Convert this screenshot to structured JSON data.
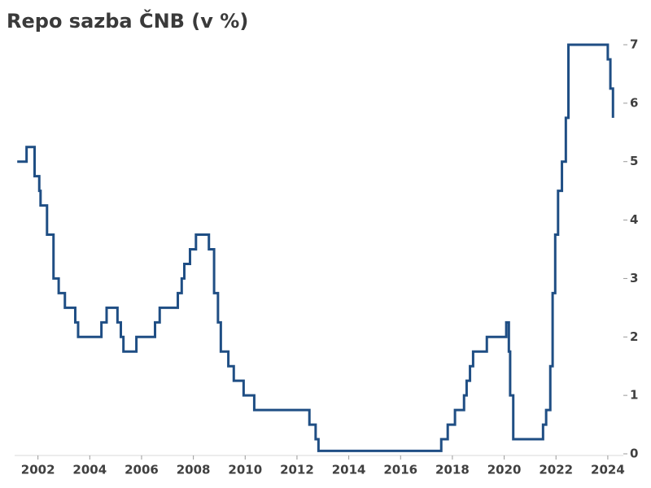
{
  "chart_data": {
    "type": "line",
    "step": "post",
    "title": "Repo sazba ČNB (v %)",
    "x": [
      2001.2,
      2001.56,
      2001.87,
      2002.05,
      2002.1,
      2002.35,
      2002.6,
      2002.8,
      2003.04,
      2003.44,
      2003.55,
      2004.45,
      2004.65,
      2005.07,
      2005.2,
      2005.3,
      2005.8,
      2006.52,
      2006.7,
      2007.4,
      2007.55,
      2007.65,
      2007.87,
      2008.1,
      2008.6,
      2008.8,
      2008.95,
      2009.06,
      2009.35,
      2009.56,
      2009.94,
      2010.35,
      2012.48,
      2012.72,
      2012.83,
      2017.57,
      2017.82,
      2018.1,
      2018.45,
      2018.55,
      2018.68,
      2018.8,
      2019.33,
      2020.08,
      2020.18,
      2020.23,
      2020.35,
      2021.5,
      2021.62,
      2021.78,
      2021.87,
      2021.97,
      2022.08,
      2022.23,
      2022.38,
      2022.48,
      2024.0,
      2024.1,
      2024.2
    ],
    "series": [
      {
        "name": "Repo sazba",
        "color": "#1f4e84",
        "values": [
          5.0,
          5.25,
          4.75,
          4.5,
          4.25,
          3.75,
          3.0,
          2.75,
          2.5,
          2.25,
          2.0,
          2.25,
          2.5,
          2.25,
          2.0,
          1.75,
          2.0,
          2.25,
          2.5,
          2.75,
          3.0,
          3.25,
          3.5,
          3.75,
          3.5,
          2.75,
          2.25,
          1.75,
          1.5,
          1.25,
          1.0,
          0.75,
          0.5,
          0.25,
          0.05,
          0.25,
          0.5,
          0.75,
          1.0,
          1.25,
          1.5,
          1.75,
          2.0,
          2.25,
          1.75,
          1.0,
          0.25,
          0.5,
          0.75,
          1.5,
          2.75,
          3.75,
          4.5,
          5.0,
          5.75,
          7.0,
          6.75,
          6.25,
          5.75
        ]
      }
    ],
    "xlim": [
      2001.1,
      2024.6
    ],
    "xticks": [
      2002,
      2004,
      2006,
      2008,
      2010,
      2012,
      2014,
      2016,
      2018,
      2020,
      2022,
      2024
    ],
    "ylim": [
      0,
      7
    ],
    "yticks": [
      0,
      1,
      2,
      3,
      4,
      5,
      6,
      7
    ],
    "grid": false
  }
}
